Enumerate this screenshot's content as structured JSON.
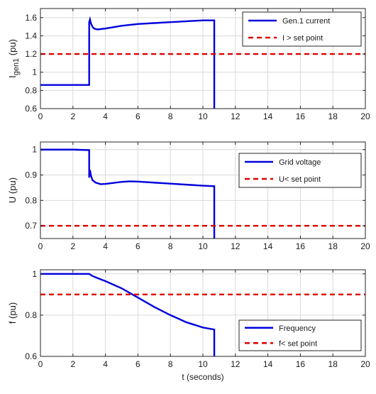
{
  "colors": {
    "series": "#0000dd",
    "setpoint": "#dd0000",
    "grid": "#d9d9d9",
    "axis": "#262626"
  },
  "chart_data": [
    {
      "type": "line",
      "ylabel": "I",
      "ylabel_sub": "gen1",
      "ylabel_unit": " (pu)",
      "xlabel": "",
      "xlim": [
        0,
        20
      ],
      "ylim": [
        0.6,
        1.7
      ],
      "xticks": [
        0,
        2,
        4,
        6,
        8,
        10,
        12,
        14,
        16,
        18,
        20
      ],
      "yticks": [
        0.6,
        0.8,
        1.0,
        1.2,
        1.4,
        1.6
      ],
      "ytick_labels": [
        "0.6",
        "0.8",
        "1",
        "1.2",
        "1.4",
        "1.6"
      ],
      "grid": true,
      "legend_position": "top-right",
      "series": [
        {
          "name": "Gen.1 current",
          "style": "solid",
          "x": [
            0,
            3.0,
            3.0,
            3.05,
            3.1,
            3.2,
            3.3,
            3.5,
            4.0,
            5.0,
            6.0,
            7.0,
            8.0,
            9.0,
            10.0,
            10.7,
            10.7
          ],
          "y": [
            0.86,
            0.86,
            1.55,
            1.58,
            1.54,
            1.5,
            1.48,
            1.47,
            1.48,
            1.51,
            1.53,
            1.54,
            1.55,
            1.56,
            1.57,
            1.57,
            0.6
          ]
        },
        {
          "name": "I > set point",
          "style": "dashed",
          "x": [
            0,
            20
          ],
          "y": [
            1.2,
            1.2
          ]
        }
      ]
    },
    {
      "type": "line",
      "ylabel": "U (pu)",
      "xlabel": "",
      "xlim": [
        0,
        20
      ],
      "ylim": [
        0.65,
        1.03
      ],
      "xticks": [
        0,
        2,
        4,
        6,
        8,
        10,
        12,
        14,
        16,
        18,
        20
      ],
      "yticks": [
        0.7,
        0.8,
        0.9,
        1.0
      ],
      "ytick_labels": [
        "0.7",
        "0.8",
        "0.9",
        "1"
      ],
      "grid": true,
      "legend_position": "right",
      "series": [
        {
          "name": "Grid voltage",
          "style": "solid",
          "x": [
            0,
            2.0,
            3.0,
            3.0,
            3.05,
            3.1,
            3.2,
            3.4,
            3.7,
            4.0,
            5.0,
            5.5,
            6.0,
            7.0,
            8.0,
            9.0,
            10.0,
            10.7,
            10.7
          ],
          "y": [
            1.0,
            1.0,
            0.998,
            0.89,
            0.92,
            0.9,
            0.88,
            0.87,
            0.864,
            0.865,
            0.873,
            0.875,
            0.874,
            0.87,
            0.866,
            0.862,
            0.858,
            0.856,
            0.65
          ]
        },
        {
          "name": "U< set point",
          "style": "dashed",
          "x": [
            0,
            20
          ],
          "y": [
            0.7,
            0.7
          ]
        }
      ]
    },
    {
      "type": "line",
      "ylabel": "f (pu)",
      "xlabel": "t (seconds)",
      "xlim": [
        0,
        20
      ],
      "ylim": [
        0.6,
        1.02
      ],
      "xticks": [
        0,
        2,
        4,
        6,
        8,
        10,
        12,
        14,
        16,
        18,
        20
      ],
      "yticks": [
        0.6,
        0.8,
        1.0
      ],
      "ytick_labels": [
        "0.6",
        "0.8",
        "1"
      ],
      "grid": true,
      "legend_position": "bottom-right",
      "series": [
        {
          "name": "Frequency",
          "style": "solid",
          "x": [
            0,
            3.0,
            3.2,
            3.5,
            4.0,
            5.0,
            6.0,
            7.0,
            8.0,
            9.0,
            10.0,
            10.7,
            10.7
          ],
          "y": [
            1.0,
            1.0,
            0.99,
            0.98,
            0.965,
            0.93,
            0.885,
            0.84,
            0.8,
            0.765,
            0.74,
            0.73,
            0.6
          ]
        },
        {
          "name": "f< set point",
          "style": "dashed",
          "x": [
            0,
            20
          ],
          "y": [
            0.9,
            0.9
          ]
        }
      ]
    }
  ]
}
